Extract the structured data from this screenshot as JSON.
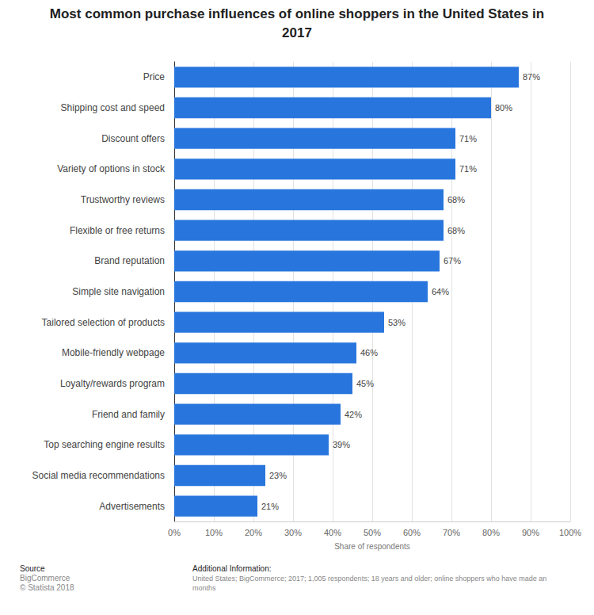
{
  "chart_data": {
    "type": "bar",
    "title": "Most common purchase influences of online shoppers in the United States in 2017",
    "orientation": "horizontal",
    "categories": [
      "Price",
      "Shipping cost and speed",
      "Discount offers",
      "Variety of options in stock",
      "Trustworthy reviews",
      "Flexible or free returns",
      "Brand reputation",
      "Simple site navigation",
      "Tailored selection of products",
      "Mobile-friendly webpage",
      "Loyalty/rewards program",
      "Friend and family",
      "Top searching engine results",
      "Social media recommendations",
      "Advertisements"
    ],
    "values": [
      87,
      80,
      71,
      71,
      68,
      68,
      67,
      64,
      53,
      46,
      45,
      42,
      39,
      23,
      21
    ],
    "value_labels": [
      "87%",
      "80%",
      "71%",
      "71%",
      "68%",
      "68%",
      "67%",
      "64%",
      "53%",
      "46%",
      "45%",
      "42%",
      "39%",
      "23%",
      "21%"
    ],
    "data_labels": true,
    "color": "#2876dd",
    "xlabel": "Share of respondents",
    "xlim": [
      0,
      100
    ],
    "xticks": [
      {
        "value": 0,
        "label": "0%"
      },
      {
        "value": 10,
        "label": "10%"
      },
      {
        "value": 20,
        "label": "20%"
      },
      {
        "value": 30,
        "label": "30%"
      },
      {
        "value": 40,
        "label": "40%"
      },
      {
        "value": 50,
        "label": "50%"
      },
      {
        "value": 60,
        "label": "60%"
      },
      {
        "value": 70,
        "label": "70%"
      },
      {
        "value": 80,
        "label": "80%"
      },
      {
        "value": 90,
        "label": "90%"
      },
      {
        "value": 100,
        "label": "100%"
      }
    ],
    "grid": true
  },
  "source": {
    "heading": "Source",
    "lines": [
      "BigCommerce",
      "© Statista 2018"
    ]
  },
  "additional_information": {
    "heading": "Additional Information:",
    "lines": [
      "United States; BigCommerce; 2017; 1,005 respondents; 18 years and older; online shoppers who have made an",
      "months"
    ]
  }
}
